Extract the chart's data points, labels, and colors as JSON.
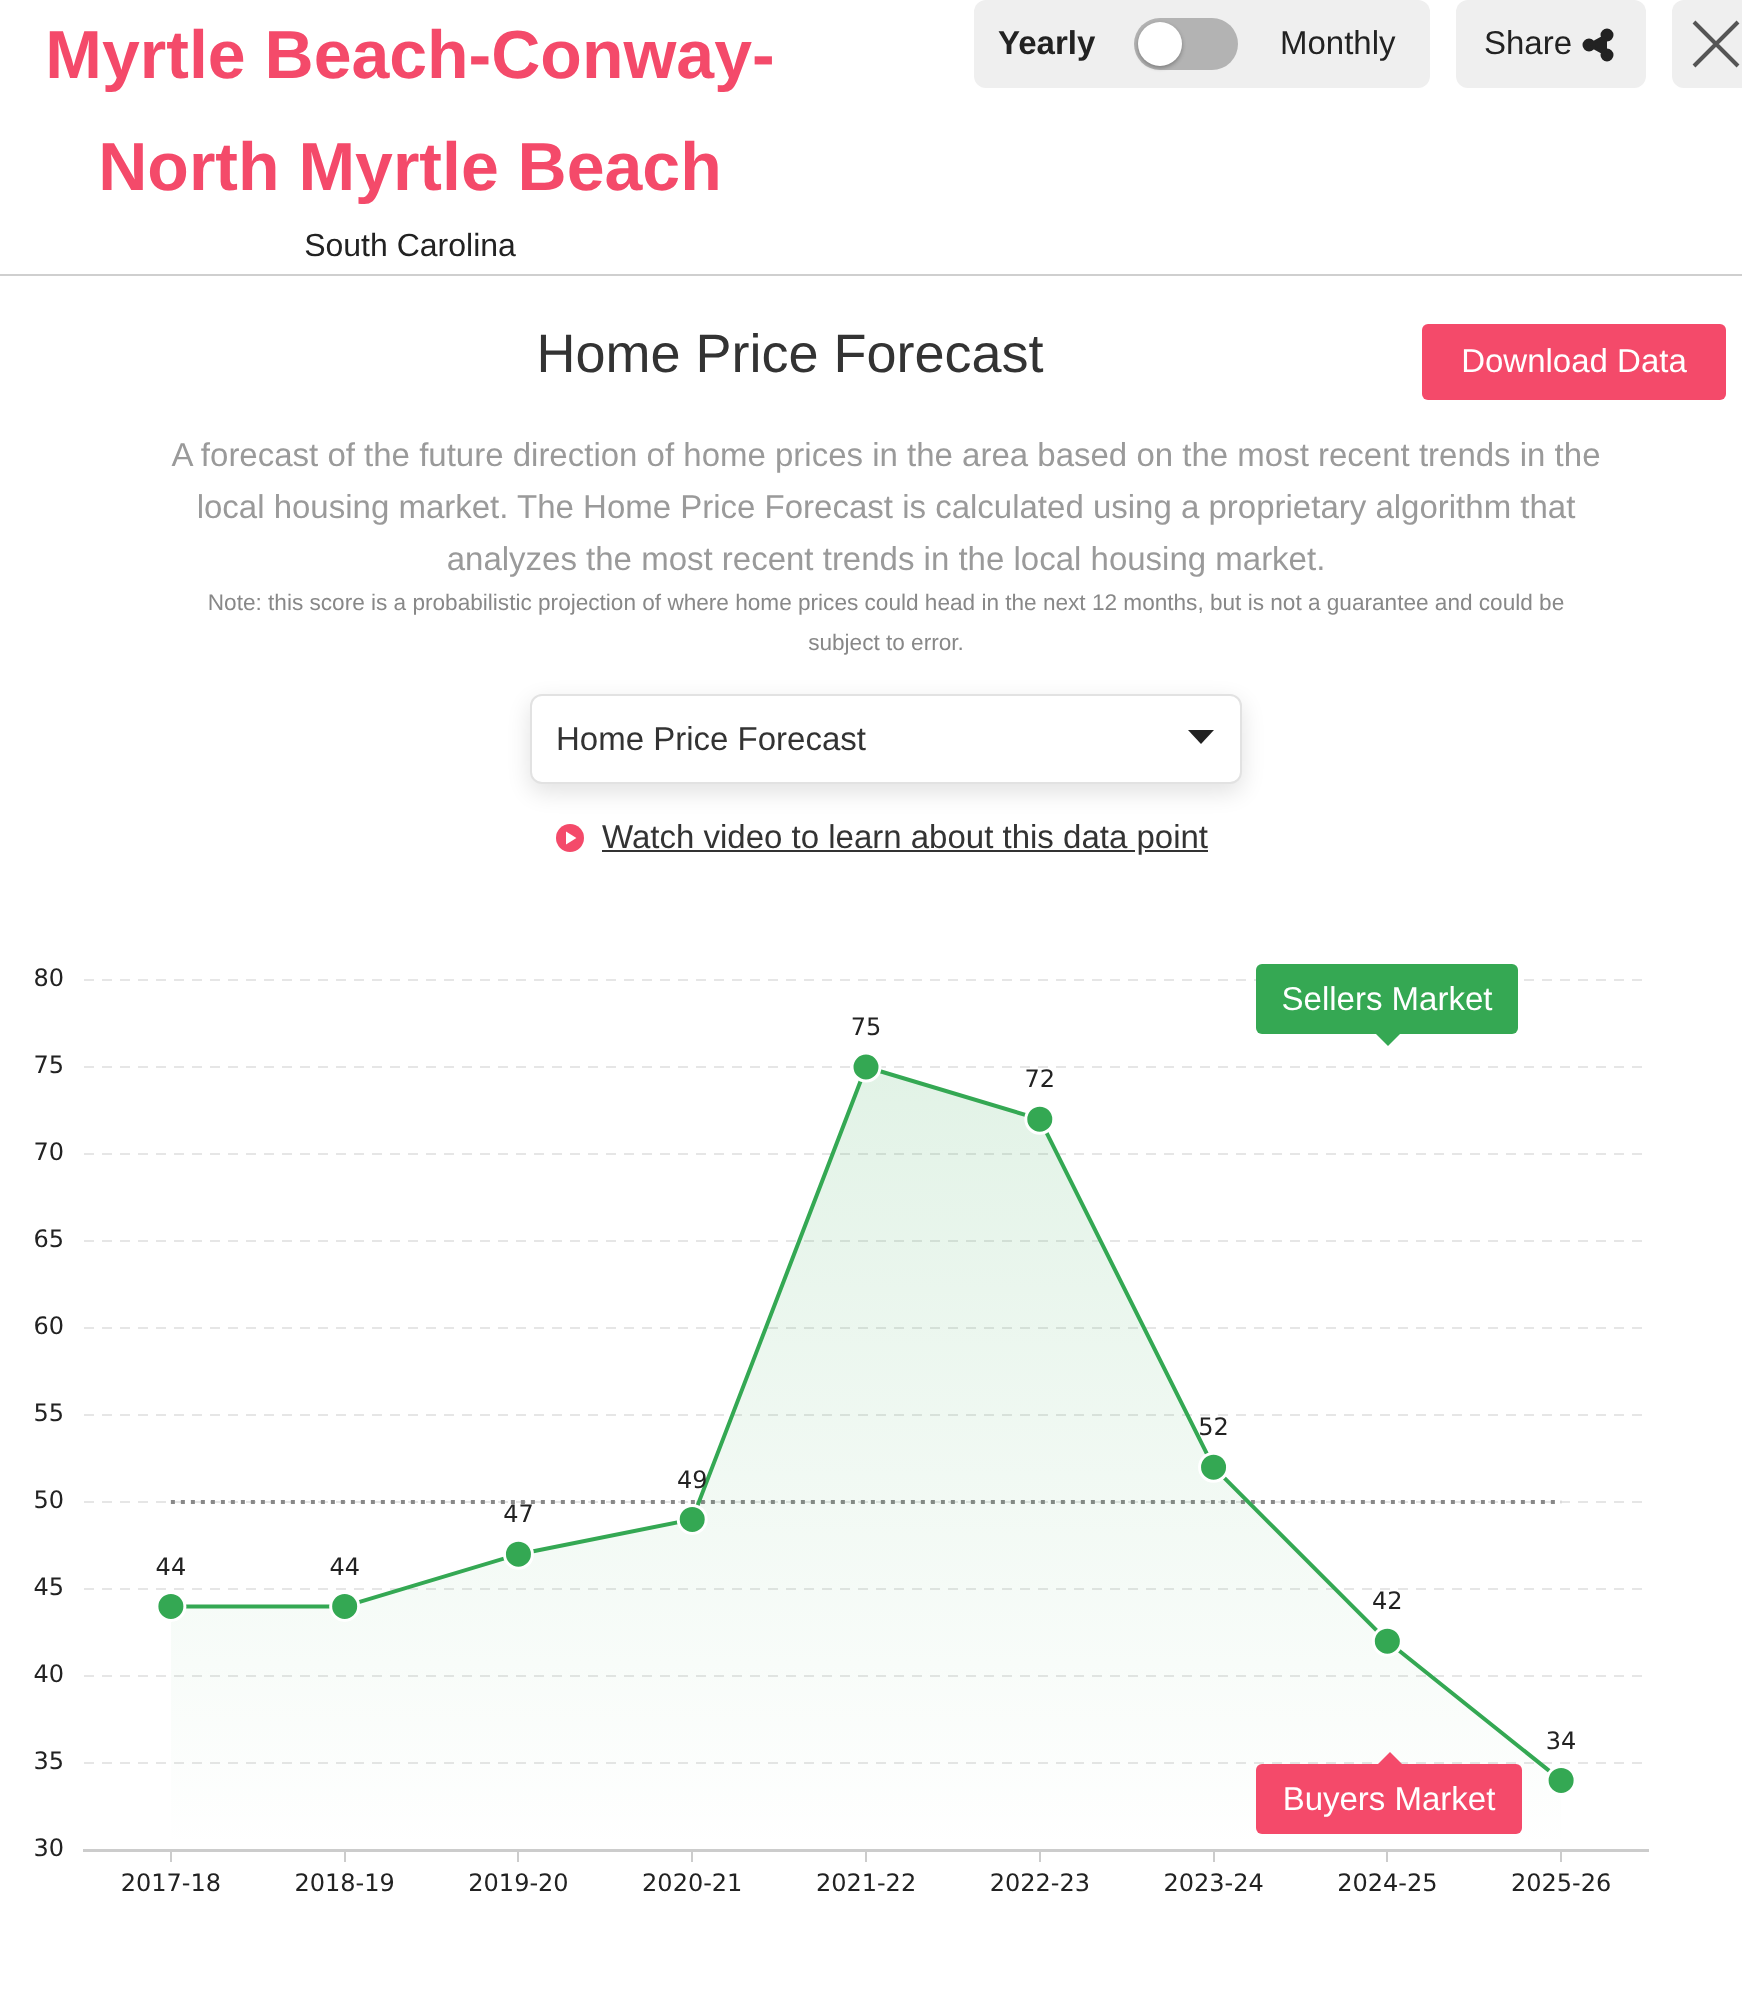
{
  "chart_data": {
    "type": "area",
    "title": "Home Price Forecast",
    "subtitle": "A forecast of the future direction of home prices in the area based on the most recent trends in the local housing market. The Home Price Forecast is calculated using a proprietary algorithm that analyzes the most recent trends in the local housing market.",
    "categories": [
      "2017-18",
      "2018-19",
      "2019-20",
      "2020-21",
      "2021-22",
      "2022-23",
      "2023-24",
      "2024-25",
      "2025-26"
    ],
    "values": [
      44,
      44,
      47,
      49,
      75,
      72,
      52,
      42,
      34
    ],
    "color": "#34a853",
    "ylim": [
      30,
      80
    ],
    "yticks": [
      30,
      35,
      40,
      45,
      50,
      55,
      60,
      65,
      70,
      75,
      80
    ],
    "grid": "y",
    "marker": "circle",
    "data_labels": true,
    "ref_lines": [
      {
        "axis": "y",
        "value": 50,
        "color": "#888888",
        "line_style": "dotted"
      }
    ],
    "annotations": [
      "Myrtle Beach-Conway-North Myrtle Beach",
      "South Carolina",
      "Yearly",
      "Monthly",
      "Share",
      "Download Data",
      "Note: this score is a probabilistic projection of where home prices could head in the next 12 months, but is not a guarantee and could be subject to error.",
      "Home Price Forecast",
      "Watch video to learn about this data point",
      "Sellers Market",
      "Buyers Market"
    ]
  }
}
